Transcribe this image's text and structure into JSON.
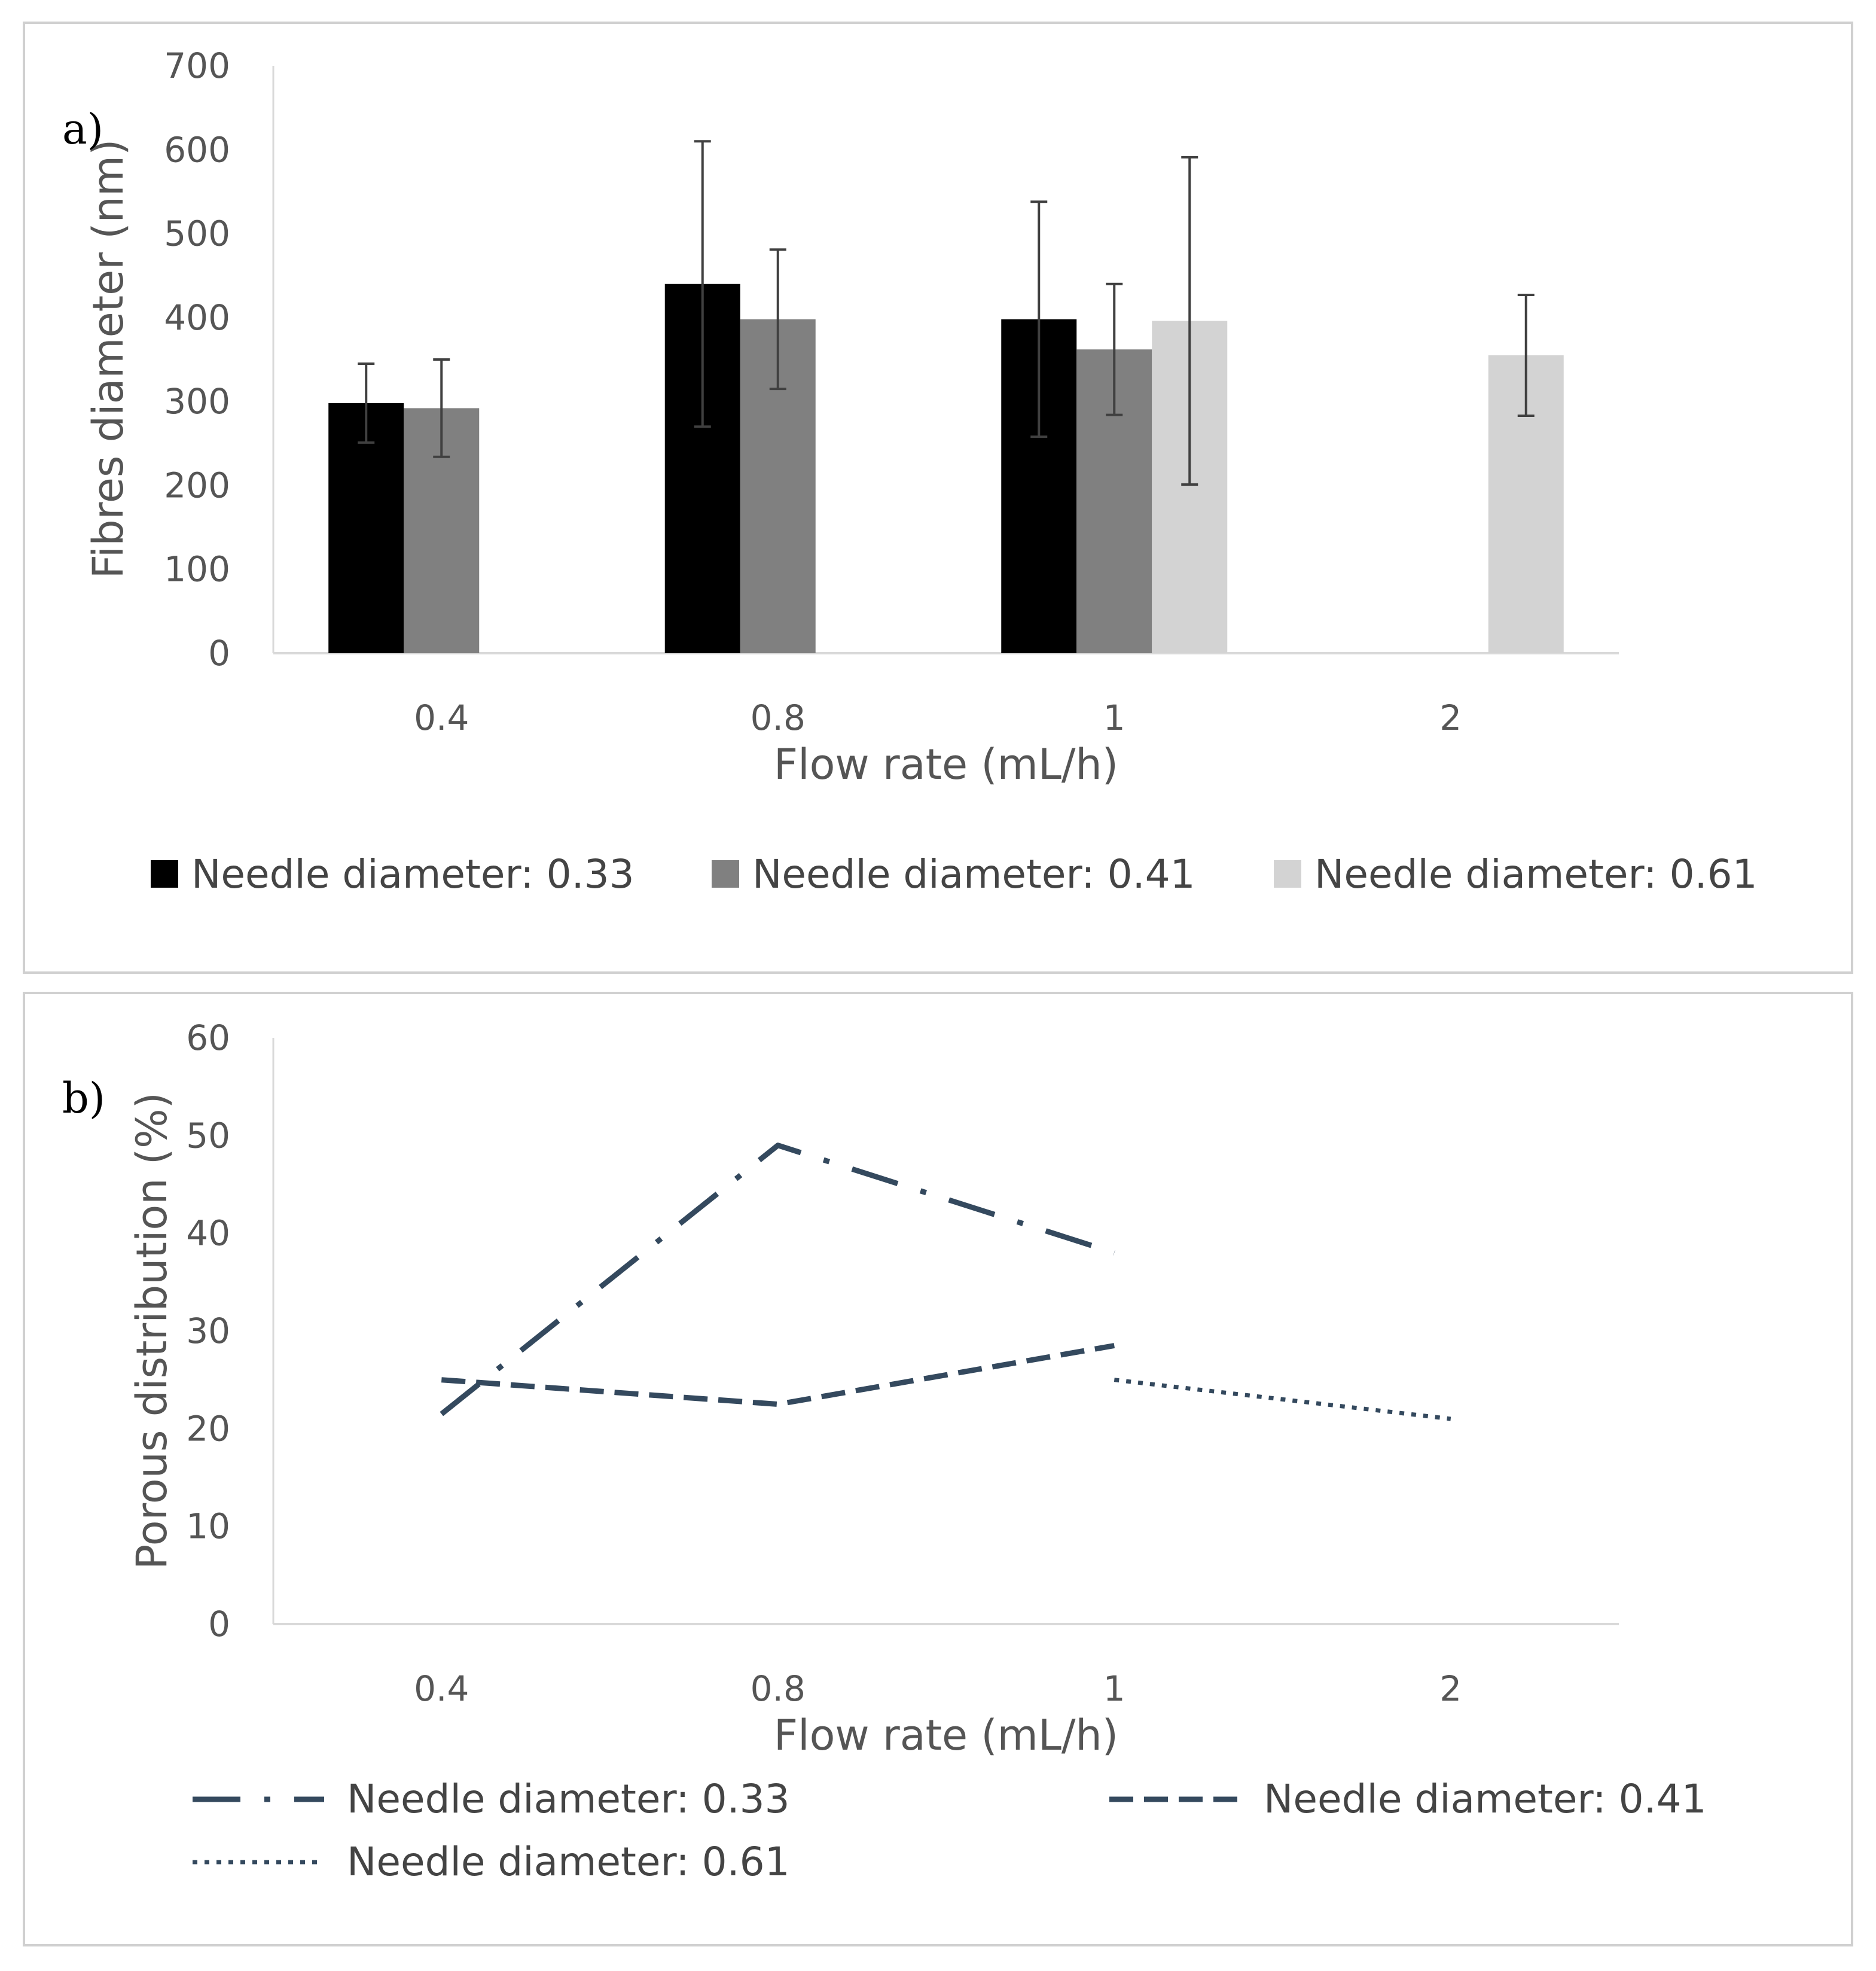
{
  "chart_data": [
    {
      "type": "bar",
      "panel_label": "a)",
      "categories": [
        "0.4",
        "0.8",
        "1",
        "2"
      ],
      "xlabel": "Flow rate (mL/h)",
      "ylabel": "Fibres diameter (nm)",
      "ylim": [
        0,
        700
      ],
      "yticks": [
        "0",
        "100",
        "200",
        "300",
        "400",
        "500",
        "600",
        "700"
      ],
      "legend_position": "bottom",
      "series": [
        {
          "name": "Needle diameter: 0.33",
          "color": "#000000",
          "values": [
            298,
            440,
            398,
            null
          ],
          "errors": [
            47,
            170,
            140,
            null
          ]
        },
        {
          "name": "Needle diameter: 0.41",
          "color": "#808080",
          "values": [
            292,
            398,
            362,
            null
          ],
          "errors": [
            58,
            83,
            78,
            null
          ]
        },
        {
          "name": "Needle diameter: 0.61",
          "color": "#d3d3d3",
          "values": [
            null,
            null,
            396,
            355
          ],
          "errors": [
            null,
            null,
            195,
            72
          ]
        }
      ]
    },
    {
      "type": "line",
      "panel_label": "b)",
      "categories": [
        "0.4",
        "0.8",
        "1",
        "2"
      ],
      "xlabel": "Flow rate (mL/h)",
      "ylabel": "Porous distribution (%)",
      "ylim": [
        0,
        60
      ],
      "yticks": [
        "0",
        "10",
        "20",
        "30",
        "40",
        "50",
        "60"
      ],
      "legend_position": "bottom",
      "series": [
        {
          "name": "Needle diameter: 0.33",
          "color": "#34495e",
          "dash": "long-dash-dot",
          "values": [
            21.5,
            49,
            38,
            null
          ]
        },
        {
          "name": "Needle diameter: 0.41",
          "color": "#34495e",
          "dash": "dash",
          "values": [
            25,
            22.5,
            28.5,
            null
          ]
        },
        {
          "name": "Needle diameter: 0.61",
          "color": "#34495e",
          "dash": "dot",
          "values": [
            null,
            null,
            25,
            21
          ]
        }
      ]
    }
  ]
}
